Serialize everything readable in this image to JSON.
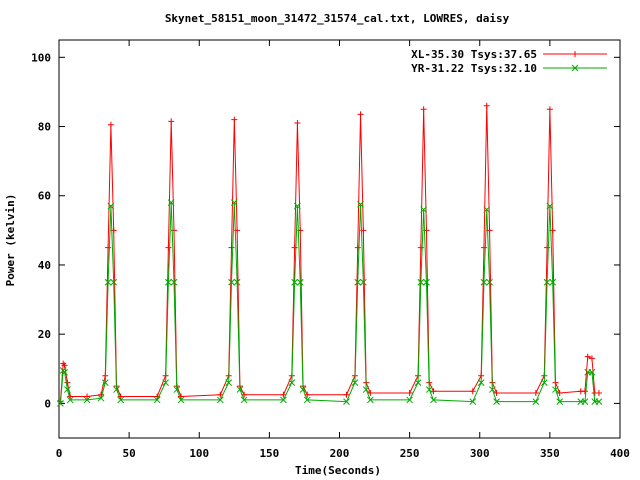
{
  "chart_data": {
    "type": "line",
    "title": "Skynet_58151_moon_31472_31574_cal.txt, LOWRES, daisy",
    "xlabel": "Time(Seconds)",
    "ylabel": "Power (kelvin)",
    "xlim": [
      0,
      400
    ],
    "ylim": [
      -10,
      105
    ],
    "xticks": [
      0,
      50,
      100,
      150,
      200,
      250,
      300,
      350,
      400
    ],
    "yticks": [
      0,
      20,
      40,
      60,
      80,
      100
    ],
    "grid": false,
    "legend_position": "top-right",
    "series": [
      {
        "name": "XL-35.30 Tsys:37.65",
        "color": "#ff0000",
        "marker": "+",
        "points": [
          [
            1,
            0.5
          ],
          [
            3,
            11.5
          ],
          [
            4,
            11
          ],
          [
            6,
            6
          ],
          [
            8,
            2
          ],
          [
            20,
            2
          ],
          [
            30,
            2.5
          ],
          [
            33,
            8
          ],
          [
            35,
            45
          ],
          [
            37,
            80.5
          ],
          [
            39,
            50
          ],
          [
            41,
            5
          ],
          [
            44,
            2
          ],
          [
            70,
            2
          ],
          [
            76,
            8
          ],
          [
            78,
            45
          ],
          [
            80,
            81.5
          ],
          [
            82,
            50
          ],
          [
            84,
            5
          ],
          [
            87,
            2
          ],
          [
            115,
            2.5
          ],
          [
            121,
            8
          ],
          [
            123,
            45
          ],
          [
            125,
            82
          ],
          [
            127,
            50
          ],
          [
            129,
            5
          ],
          [
            132,
            2.5
          ],
          [
            160,
            2.5
          ],
          [
            166,
            8
          ],
          [
            168,
            45
          ],
          [
            170,
            81
          ],
          [
            172,
            50
          ],
          [
            174,
            5
          ],
          [
            177,
            2.5
          ],
          [
            205,
            2.5
          ],
          [
            211,
            8
          ],
          [
            213,
            45
          ],
          [
            215,
            83.5
          ],
          [
            217,
            50
          ],
          [
            219,
            6
          ],
          [
            222,
            3
          ],
          [
            250,
            3
          ],
          [
            256,
            8
          ],
          [
            258,
            45
          ],
          [
            260,
            85
          ],
          [
            262,
            50
          ],
          [
            264,
            6
          ],
          [
            267,
            3.5
          ],
          [
            295,
            3.5
          ],
          [
            301,
            8
          ],
          [
            303,
            45
          ],
          [
            305,
            86
          ],
          [
            307,
            50
          ],
          [
            309,
            6
          ],
          [
            312,
            3
          ],
          [
            340,
            3
          ],
          [
            346,
            8
          ],
          [
            348,
            45
          ],
          [
            350,
            85
          ],
          [
            352,
            50
          ],
          [
            354,
            6
          ],
          [
            357,
            3
          ],
          [
            372,
            3.5
          ],
          [
            375,
            3.5
          ],
          [
            377,
            13.5
          ],
          [
            380,
            13
          ],
          [
            382,
            3
          ],
          [
            385,
            3
          ]
        ]
      },
      {
        "name": "YR-31.22 Tsys:32.10",
        "color": "#00aa00",
        "marker": "x",
        "points": [
          [
            1,
            0
          ],
          [
            3,
            9.5
          ],
          [
            4,
            9
          ],
          [
            6,
            4
          ],
          [
            8,
            1
          ],
          [
            20,
            1
          ],
          [
            30,
            1.5
          ],
          [
            33,
            6
          ],
          [
            35,
            35
          ],
          [
            37,
            57
          ],
          [
            39,
            35
          ],
          [
            41,
            4
          ],
          [
            44,
            1
          ],
          [
            70,
            1
          ],
          [
            76,
            6
          ],
          [
            78,
            35
          ],
          [
            80,
            58
          ],
          [
            82,
            35
          ],
          [
            84,
            4
          ],
          [
            87,
            1
          ],
          [
            115,
            1
          ],
          [
            121,
            6
          ],
          [
            123,
            35
          ],
          [
            125,
            58
          ],
          [
            127,
            35
          ],
          [
            129,
            4
          ],
          [
            132,
            1
          ],
          [
            160,
            1
          ],
          [
            166,
            6
          ],
          [
            168,
            35
          ],
          [
            170,
            57
          ],
          [
            172,
            35
          ],
          [
            174,
            4
          ],
          [
            177,
            1
          ],
          [
            205,
            0.5
          ],
          [
            211,
            6
          ],
          [
            213,
            35
          ],
          [
            215,
            57.5
          ],
          [
            217,
            35
          ],
          [
            219,
            4
          ],
          [
            222,
            1
          ],
          [
            250,
            1
          ],
          [
            256,
            6
          ],
          [
            258,
            35
          ],
          [
            260,
            56
          ],
          [
            262,
            35
          ],
          [
            264,
            4
          ],
          [
            267,
            1
          ],
          [
            295,
            0.5
          ],
          [
            301,
            6
          ],
          [
            303,
            35
          ],
          [
            305,
            56
          ],
          [
            307,
            35
          ],
          [
            309,
            4
          ],
          [
            312,
            0.5
          ],
          [
            340,
            0.5
          ],
          [
            346,
            6
          ],
          [
            348,
            35
          ],
          [
            350,
            57
          ],
          [
            352,
            35
          ],
          [
            354,
            4
          ],
          [
            357,
            0.5
          ],
          [
            372,
            0.5
          ],
          [
            375,
            0.5
          ],
          [
            377,
            9
          ],
          [
            380,
            9
          ],
          [
            382,
            0.5
          ],
          [
            385,
            0.5
          ]
        ]
      }
    ]
  }
}
